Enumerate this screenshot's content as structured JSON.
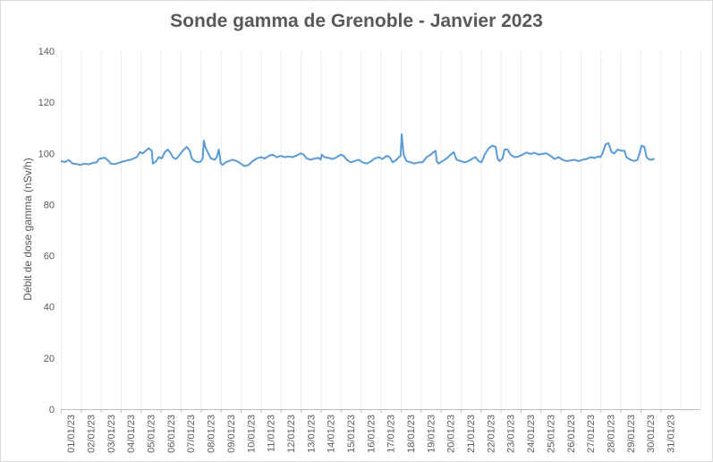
{
  "chart_data": {
    "type": "line",
    "title": "Sonde gamma de Grenoble - Janvier 2023",
    "xlabel": "",
    "ylabel": "Débit de dose gamma (nSv/h)",
    "ylim": [
      0,
      140
    ],
    "yticks": [
      0,
      20,
      40,
      60,
      80,
      100,
      120,
      140
    ],
    "xlim": [
      0,
      32
    ],
    "grid": "vertical",
    "legend": "none",
    "line_color": "#5b9bd5",
    "categories": [
      "01/01/23",
      "02/01/23",
      "03/01/23",
      "04/01/23",
      "05/01/23",
      "06/01/23",
      "07/01/23",
      "08/01/23",
      "09/01/23",
      "10/01/23",
      "11/01/23",
      "12/01/23",
      "13/01/23",
      "14/01/23",
      "15/01/23",
      "16/01/23",
      "17/01/23",
      "18/01/23",
      "19/01/23",
      "20/01/23",
      "21/01/23",
      "22/01/23",
      "23/01/23",
      "24/01/23",
      "25/01/23",
      "26/01/23",
      "27/01/23",
      "28/01/23",
      "29/01/23",
      "30/01/23",
      "31/01/23"
    ],
    "series": [
      {
        "values": [
          [
            0.0,
            97
          ],
          [
            0.2,
            96.6
          ],
          [
            0.4,
            97.4
          ],
          [
            0.6,
            96
          ],
          [
            0.8,
            95.8
          ],
          [
            1.0,
            95.5
          ],
          [
            1.2,
            96
          ],
          [
            1.4,
            95.7
          ],
          [
            1.6,
            96.3
          ],
          [
            1.8,
            96.5
          ],
          [
            1.9,
            97.8
          ],
          [
            2.0,
            98
          ],
          [
            2.2,
            98.3
          ],
          [
            2.4,
            97
          ],
          [
            2.5,
            96
          ],
          [
            2.7,
            95.8
          ],
          [
            2.9,
            96.3
          ],
          [
            3.1,
            96.8
          ],
          [
            3.3,
            97.2
          ],
          [
            3.5,
            97.5
          ],
          [
            3.8,
            98.5
          ],
          [
            3.95,
            100.5
          ],
          [
            4.1,
            100
          ],
          [
            4.25,
            101
          ],
          [
            4.4,
            102
          ],
          [
            4.55,
            101
          ],
          [
            4.6,
            96
          ],
          [
            4.75,
            96.8
          ],
          [
            4.9,
            98.5
          ],
          [
            5.05,
            98
          ],
          [
            5.2,
            100.5
          ],
          [
            5.35,
            101.5
          ],
          [
            5.5,
            100
          ],
          [
            5.6,
            98.5
          ],
          [
            5.75,
            97.8
          ],
          [
            5.85,
            98.5
          ],
          [
            6.0,
            100
          ],
          [
            6.15,
            101.5
          ],
          [
            6.3,
            102.5
          ],
          [
            6.45,
            101
          ],
          [
            6.55,
            98
          ],
          [
            6.7,
            97
          ],
          [
            6.85,
            96.5
          ],
          [
            7.0,
            96.8
          ],
          [
            7.1,
            98
          ],
          [
            7.15,
            105
          ],
          [
            7.25,
            102
          ],
          [
            7.35,
            100.5
          ],
          [
            7.5,
            98
          ],
          [
            7.7,
            97.5
          ],
          [
            7.8,
            98.5
          ],
          [
            7.9,
            101.5
          ],
          [
            7.95,
            99
          ],
          [
            8.0,
            96
          ],
          [
            8.1,
            95.5
          ],
          [
            8.25,
            96.5
          ],
          [
            8.4,
            97
          ],
          [
            8.6,
            97.5
          ],
          [
            8.8,
            97
          ],
          [
            9.0,
            96
          ],
          [
            9.2,
            95
          ],
          [
            9.4,
            95.5
          ],
          [
            9.6,
            97
          ],
          [
            9.8,
            98
          ],
          [
            10.0,
            98.5
          ],
          [
            10.2,
            98
          ],
          [
            10.4,
            99
          ],
          [
            10.6,
            99.5
          ],
          [
            10.8,
            98.5
          ],
          [
            11.0,
            99
          ],
          [
            11.2,
            98.5
          ],
          [
            11.4,
            98.8
          ],
          [
            11.6,
            98.5
          ],
          [
            11.8,
            99.2
          ],
          [
            12.0,
            100
          ],
          [
            12.15,
            99.5
          ],
          [
            12.3,
            98
          ],
          [
            12.5,
            97.5
          ],
          [
            12.7,
            98
          ],
          [
            12.9,
            98.2
          ],
          [
            13.0,
            97.5
          ],
          [
            13.05,
            99.5
          ],
          [
            13.2,
            98.5
          ],
          [
            13.4,
            98.2
          ],
          [
            13.6,
            97.8
          ],
          [
            13.8,
            98.5
          ],
          [
            14.0,
            99.5
          ],
          [
            14.15,
            99
          ],
          [
            14.3,
            97.5
          ],
          [
            14.5,
            96.5
          ],
          [
            14.7,
            97
          ],
          [
            14.9,
            97.5
          ],
          [
            15.1,
            96.5
          ],
          [
            15.3,
            96
          ],
          [
            15.5,
            96.8
          ],
          [
            15.7,
            98
          ],
          [
            15.9,
            98.5
          ],
          [
            16.1,
            97.8
          ],
          [
            16.3,
            99
          ],
          [
            16.45,
            98.5
          ],
          [
            16.6,
            96.5
          ],
          [
            16.8,
            97.5
          ],
          [
            16.9,
            98.5
          ],
          [
            17.0,
            99
          ],
          [
            17.05,
            107.5
          ],
          [
            17.15,
            99.5
          ],
          [
            17.3,
            97
          ],
          [
            17.5,
            96.5
          ],
          [
            17.7,
            96
          ],
          [
            17.9,
            96.5
          ],
          [
            18.1,
            96.5
          ],
          [
            18.3,
            98.5
          ],
          [
            18.5,
            99.5
          ],
          [
            18.65,
            100.5
          ],
          [
            18.75,
            101
          ],
          [
            18.8,
            97
          ],
          [
            18.9,
            96
          ],
          [
            19.1,
            97
          ],
          [
            19.3,
            98
          ],
          [
            19.5,
            99.5
          ],
          [
            19.65,
            100.5
          ],
          [
            19.8,
            97.5
          ],
          [
            20.0,
            97
          ],
          [
            20.2,
            96.5
          ],
          [
            20.4,
            97
          ],
          [
            20.6,
            98
          ],
          [
            20.75,
            98.5
          ],
          [
            20.9,
            97
          ],
          [
            21.05,
            96.5
          ],
          [
            21.2,
            99.5
          ],
          [
            21.4,
            102
          ],
          [
            21.6,
            103
          ],
          [
            21.75,
            102.5
          ],
          [
            21.85,
            98
          ],
          [
            21.95,
            97
          ],
          [
            22.1,
            98
          ],
          [
            22.2,
            101.5
          ],
          [
            22.35,
            101.5
          ],
          [
            22.5,
            99.5
          ],
          [
            22.7,
            98.5
          ],
          [
            22.9,
            98.8
          ],
          [
            23.1,
            99.5
          ],
          [
            23.3,
            100.3
          ],
          [
            23.5,
            99.8
          ],
          [
            23.7,
            100.2
          ],
          [
            23.9,
            99.5
          ],
          [
            24.1,
            99.8
          ],
          [
            24.3,
            100
          ],
          [
            24.5,
            99
          ],
          [
            24.7,
            97.8
          ],
          [
            24.9,
            98.5
          ],
          [
            25.1,
            97.5
          ],
          [
            25.3,
            97
          ],
          [
            25.5,
            97.2
          ],
          [
            25.7,
            97.5
          ],
          [
            25.9,
            97
          ],
          [
            26.1,
            97.5
          ],
          [
            26.3,
            97.8
          ],
          [
            26.5,
            98.5
          ],
          [
            26.7,
            98.2
          ],
          [
            26.9,
            98.8
          ],
          [
            27.0,
            98.5
          ],
          [
            27.1,
            100
          ],
          [
            27.25,
            103.5
          ],
          [
            27.4,
            104
          ],
          [
            27.55,
            100.5
          ],
          [
            27.7,
            100
          ],
          [
            27.85,
            101.5
          ],
          [
            28.05,
            101
          ],
          [
            28.2,
            101
          ],
          [
            28.3,
            98.5
          ],
          [
            28.5,
            97.5
          ],
          [
            28.7,
            97
          ],
          [
            28.85,
            97.5
          ],
          [
            28.95,
            100
          ],
          [
            29.05,
            103
          ],
          [
            29.2,
            102.5
          ],
          [
            29.3,
            98.5
          ],
          [
            29.45,
            97.5
          ],
          [
            29.6,
            97.5
          ],
          [
            29.7,
            98
          ]
        ]
      }
    ]
  }
}
